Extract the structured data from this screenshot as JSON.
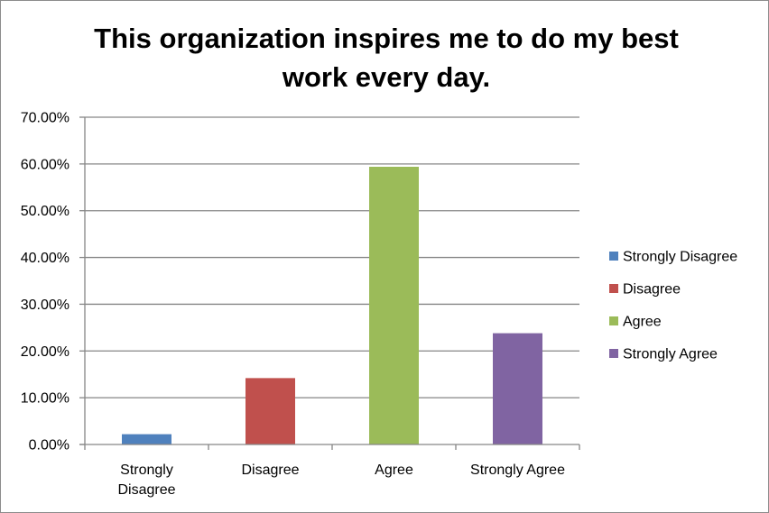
{
  "chart_data": {
    "type": "bar",
    "title": "This organization inspires me to do my best work every day.",
    "title_lines": [
      "This organization inspires me to do my best",
      "work every day."
    ],
    "categories": [
      "Strongly Disagree",
      "Disagree",
      "Agree",
      "Strongly Agree"
    ],
    "category_label_lines": [
      [
        "Strongly",
        "Disagree"
      ],
      [
        "Disagree"
      ],
      [
        "Agree"
      ],
      [
        "Strongly Agree"
      ]
    ],
    "values": [
      2.2,
      14.2,
      59.4,
      23.8
    ],
    "colors": [
      "#4f81bd",
      "#c0504d",
      "#9bbb59",
      "#8064a2"
    ],
    "ylim": [
      0,
      70
    ],
    "yticks": [
      0,
      10,
      20,
      30,
      40,
      50,
      60,
      70
    ],
    "ytick_labels": [
      "0.00%",
      "10.00%",
      "20.00%",
      "30.00%",
      "40.00%",
      "50.00%",
      "60.00%",
      "70.00%"
    ],
    "grid": true,
    "legend": {
      "position": "right",
      "entries": [
        "Strongly Disagree",
        "Disagree",
        "Agree",
        "Strongly Agree"
      ]
    },
    "xlabel": "",
    "ylabel": ""
  }
}
